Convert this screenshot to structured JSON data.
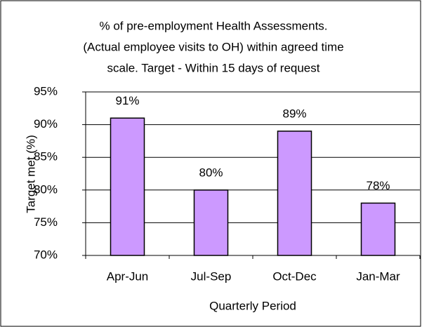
{
  "chart_data": {
    "type": "bar",
    "title": [
      "% of pre-employment Health Assessments.",
      "(Actual employee visits to OH) within agreed time",
      "scale.  Target - Within 15 days of request"
    ],
    "x_label": "Quarterly Period",
    "y_label": "Target met (%)",
    "categories": [
      "Apr-Jun",
      "Jul-Sep",
      "Oct-Dec",
      "Jan-Mar"
    ],
    "values": [
      91,
      80,
      89,
      78
    ],
    "value_labels": [
      "91%",
      "80%",
      "89%",
      "78%"
    ],
    "color": "#cc99ff",
    "ylim": [
      70,
      95
    ],
    "yticks": [
      {
        "value": 70,
        "label": "70%"
      },
      {
        "value": 75,
        "label": "75%"
      },
      {
        "value": 80,
        "label": "80%"
      },
      {
        "value": 85,
        "label": "85%"
      },
      {
        "value": 90,
        "label": "90%"
      },
      {
        "value": 95,
        "label": "95%"
      }
    ],
    "grid": true
  }
}
